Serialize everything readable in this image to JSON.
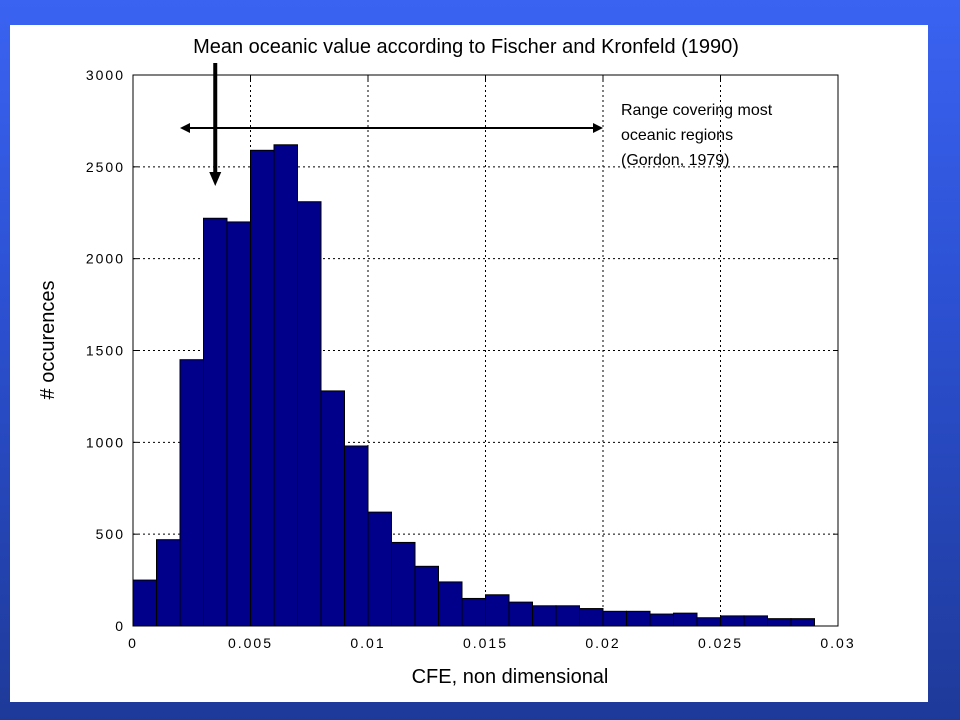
{
  "annotations": {
    "mean_label": "Mean oceanic value according to Fischer and Kronfeld (1990)",
    "range_line1": "Range covering most",
    "range_line2": "oceanic regions",
    "range_line3": "(Gordon, 1979)",
    "mean_value_x": 0.0035,
    "range_x": [
      0.002,
      0.02
    ]
  },
  "chart_data": {
    "type": "bar",
    "title": "",
    "xlabel": "CFE, non dimensional",
    "ylabel": "# occurences",
    "xlim": [
      0,
      0.03
    ],
    "ylim": [
      0,
      3000
    ],
    "xticks": [
      0,
      0.005,
      0.01,
      0.015,
      0.02,
      0.025,
      0.03
    ],
    "xtick_labels": [
      "0",
      "0.005",
      "0.01",
      "0.015",
      "0.02",
      "0.025",
      "0.03"
    ],
    "yticks": [
      0,
      500,
      1000,
      1500,
      2000,
      2500,
      3000
    ],
    "ytick_labels": [
      "0",
      "500",
      "1000",
      "1500",
      "2000",
      "2500",
      "3000"
    ],
    "grid": true,
    "bin_width": 0.001,
    "bin_left_edges": [
      0,
      0.001,
      0.002,
      0.003,
      0.004,
      0.005,
      0.006,
      0.007,
      0.008,
      0.009,
      0.01,
      0.011,
      0.012,
      0.013,
      0.014,
      0.015,
      0.016,
      0.017,
      0.018,
      0.019,
      0.02,
      0.021,
      0.022,
      0.023,
      0.024,
      0.025,
      0.026,
      0.027,
      0.028
    ],
    "values": [
      250,
      470,
      1450,
      2220,
      2200,
      2590,
      2620,
      2310,
      1280,
      980,
      620,
      455,
      325,
      240,
      150,
      170,
      130,
      110,
      110,
      95,
      80,
      80,
      65,
      70,
      45,
      55,
      55,
      40,
      40
    ],
    "bar_color": "#00008b"
  }
}
